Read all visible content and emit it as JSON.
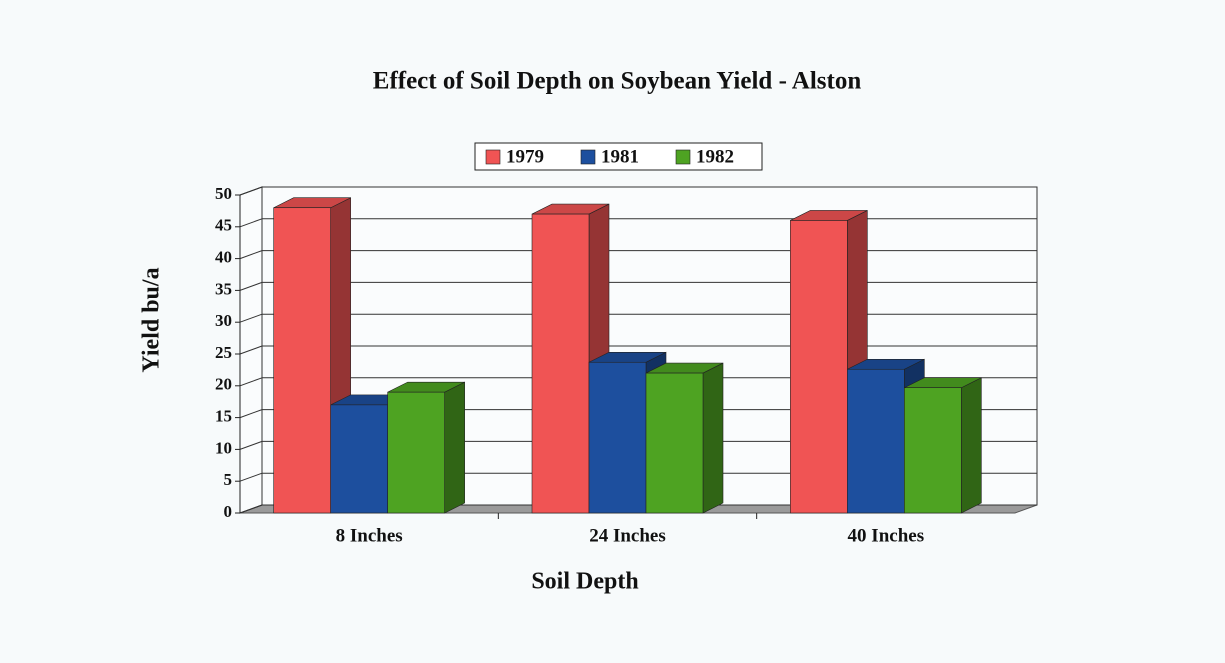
{
  "chart_data": {
    "type": "bar3d",
    "title": "Effect of Soil Depth on Soybean Yield - Alston",
    "x_label": "Soil Depth",
    "y_label": "Yield bu/a",
    "categories": [
      "8 Inches",
      "24 Inches",
      "40 Inches"
    ],
    "series": [
      {
        "name": "1979",
        "color": "#f05454",
        "values": [
          48,
          47,
          46
        ]
      },
      {
        "name": "1981",
        "color": "#1d4f9e",
        "values": [
          17,
          23.7,
          22.6
        ]
      },
      {
        "name": "1982",
        "color": "#4ea322",
        "values": [
          19,
          22,
          19.7
        ]
      }
    ],
    "ylim": [
      0,
      50
    ],
    "yticks": [
      0,
      5,
      10,
      15,
      20,
      25,
      30,
      35,
      40,
      45,
      50
    ],
    "grid": true,
    "legend": "top"
  }
}
